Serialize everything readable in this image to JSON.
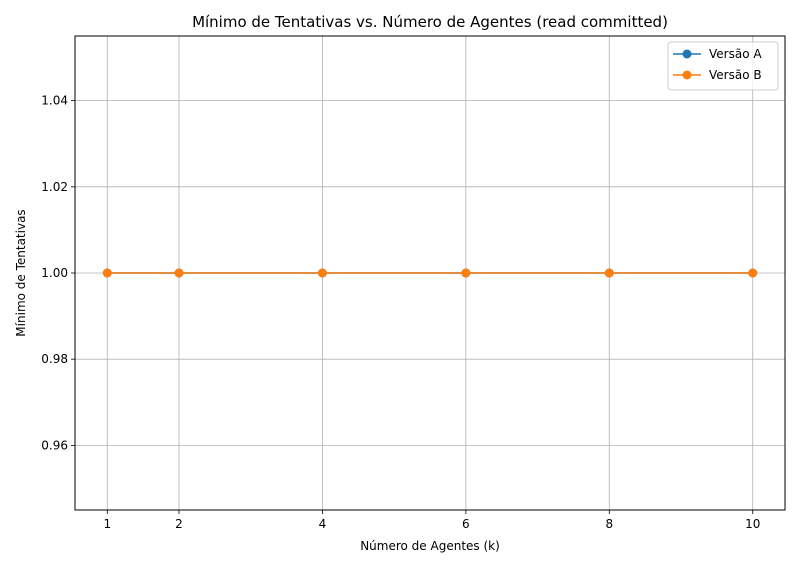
{
  "chart_data": {
    "type": "line",
    "title": "Mínimo de Tentativas vs. Número de Agentes (read committed)",
    "xlabel": "Número de Agentes (k)",
    "ylabel": "Mínimo de Tentativas",
    "x": [
      1,
      2,
      4,
      6,
      8,
      10
    ],
    "xticks": [
      1,
      2,
      4,
      6,
      8,
      10
    ],
    "xlim": [
      0.55,
      10.45
    ],
    "yticks": [
      0.96,
      0.98,
      1.0,
      1.02,
      1.04
    ],
    "ytick_labels": [
      "0.96",
      "0.98",
      "1.00",
      "1.02",
      "1.04"
    ],
    "ylim": [
      0.945,
      1.055
    ],
    "grid": true,
    "legend_position": "top-right",
    "series": [
      {
        "name": "Versão A",
        "values": [
          1,
          1,
          1,
          1,
          1,
          1
        ],
        "color": "#1f77b4"
      },
      {
        "name": "Versão B",
        "values": [
          1,
          1,
          1,
          1,
          1,
          1
        ],
        "color": "#ff7f0e"
      }
    ]
  }
}
